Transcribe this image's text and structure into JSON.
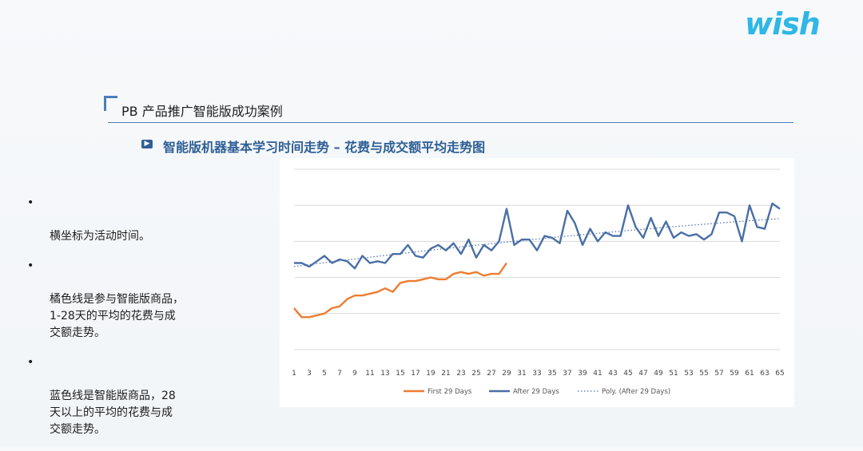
{
  "brand": {
    "logo_text": "wish",
    "color": "#2fb7e6"
  },
  "heading": "PB  产品推广智能版成功案例",
  "subtitle": "智能版机器基本学习时间走势  –  花费与成交额平均走势图",
  "bullets": [
    {
      "text": "横坐标为活动时间。"
    },
    {
      "text": "橘色线是参与智能版商品，\n1-28天的平均的花费与成\n交额走势。"
    },
    {
      "text": "蓝色线是智能版商品，28\n天以上的平均的花费与成\n交额走势。"
    }
  ],
  "bullet_glyph": "•",
  "chart_data": {
    "type": "line",
    "x_ticks": [
      1,
      3,
      5,
      7,
      9,
      11,
      13,
      15,
      17,
      19,
      21,
      23,
      25,
      27,
      29,
      31,
      33,
      35,
      37,
      39,
      41,
      43,
      45,
      47,
      49,
      51,
      53,
      55,
      57,
      59,
      61,
      63,
      65
    ],
    "xlim": [
      1,
      65
    ],
    "ylim": [
      0,
      100
    ],
    "grid": true,
    "legend_position": "bottom",
    "series": [
      {
        "name": "First 29 Days",
        "color": "#ed7d31",
        "x": [
          1,
          2,
          3,
          4,
          5,
          6,
          7,
          8,
          9,
          10,
          11,
          12,
          13,
          14,
          15,
          16,
          17,
          18,
          19,
          20,
          21,
          22,
          23,
          24,
          25,
          26,
          27,
          28,
          29
        ],
        "values": [
          23,
          18,
          18,
          19,
          20,
          23,
          24,
          28,
          30,
          30,
          31,
          32,
          34,
          32,
          37,
          38,
          38,
          39,
          40,
          39,
          39,
          42,
          43,
          42,
          43,
          41,
          42,
          42,
          48
        ]
      },
      {
        "name": "After 29 Days",
        "color": "#4a6fa5",
        "x": [
          1,
          2,
          3,
          4,
          5,
          6,
          7,
          8,
          9,
          10,
          11,
          12,
          13,
          14,
          15,
          16,
          17,
          18,
          19,
          20,
          21,
          22,
          23,
          24,
          25,
          26,
          27,
          28,
          29,
          30,
          31,
          32,
          33,
          34,
          35,
          36,
          37,
          38,
          39,
          40,
          41,
          42,
          43,
          44,
          45,
          46,
          47,
          48,
          49,
          50,
          51,
          52,
          53,
          54,
          55,
          56,
          57,
          58,
          59,
          60,
          61,
          62,
          63,
          64,
          65
        ],
        "values": [
          48,
          48,
          46,
          49,
          52,
          48,
          50,
          49,
          45,
          52,
          48,
          49,
          48,
          53,
          53,
          58,
          52,
          51,
          56,
          58,
          55,
          59,
          53,
          61,
          51,
          58,
          55,
          60,
          78,
          58,
          61,
          61,
          55,
          63,
          62,
          59,
          77,
          70,
          58,
          67,
          60,
          65,
          63,
          63,
          80,
          68,
          62,
          73,
          63,
          71,
          62,
          65,
          63,
          64,
          61,
          64,
          76,
          76,
          74,
          60,
          80,
          68,
          67,
          81,
          78
        ],
        "dashed": false
      },
      {
        "name": "Poly. (After 29 Days)",
        "color": "#4a6fa5",
        "trend_of": "After 29 Days",
        "dashed": true
      }
    ]
  }
}
